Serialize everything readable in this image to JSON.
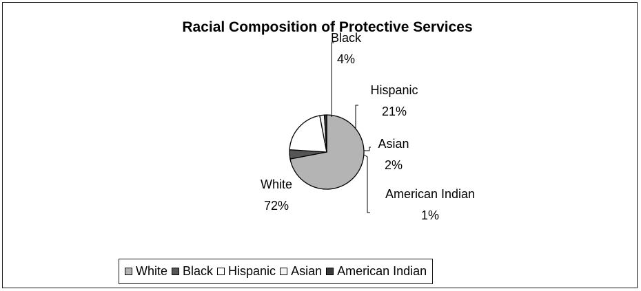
{
  "chart_data": {
    "type": "pie",
    "title": "Racial Composition of Protective Services",
    "slices": [
      {
        "label": "White",
        "value": 72,
        "pct_label": "72%",
        "color": "#b4b4b4"
      },
      {
        "label": "Black",
        "value": 4,
        "pct_label": "4%",
        "color": "#555555"
      },
      {
        "label": "Hispanic",
        "value": 21,
        "pct_label": "21%",
        "color": "#ffffff"
      },
      {
        "label": "Asian",
        "value": 2,
        "pct_label": "2%",
        "color": "#f4f4f4"
      },
      {
        "label": "American Indian",
        "value": 1,
        "pct_label": "1%",
        "color": "#3a3a3a"
      }
    ],
    "legend_position": "bottom",
    "legend": [
      "White",
      "Black",
      "Hispanic",
      "Asian",
      "American Indian"
    ]
  }
}
